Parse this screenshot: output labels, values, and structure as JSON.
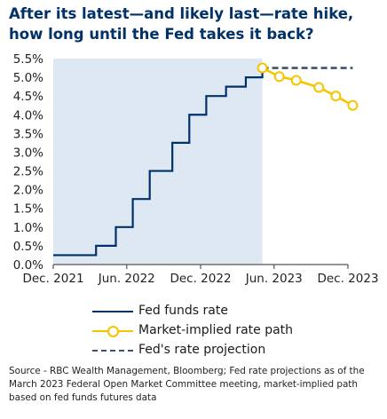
{
  "title": "After its latest—and likely last—rate hike, how long until the Fed takes it back?",
  "source": "Source - RBC Wealth Management, Bloomberg; Fed rate projections as of the March 2023 Federal Open Market Committee meeting, market-implied path based on fed funds futures data",
  "colors": {
    "fed_funds": "#003168",
    "market_path": "#f6c400",
    "projection": "#3d5270",
    "shade": "#dde8f3",
    "title": "#003168"
  },
  "chart_data": {
    "type": "line",
    "title": "After its latest—and likely last—rate hike, how long until the Fed takes it back?",
    "xlabel": "",
    "ylabel": "",
    "y_ticks": [
      "0.0%",
      "0.5%",
      "1.0%",
      "1.5%",
      "2.0%",
      "2.5%",
      "3.0%",
      "3.5%",
      "4.0%",
      "4.5%",
      "5.0%",
      "5.5%"
    ],
    "y_tick_values": [
      0,
      0.5,
      1.0,
      1.5,
      2.0,
      2.5,
      3.0,
      3.5,
      4.0,
      4.5,
      5.0,
      5.5
    ],
    "x_ticks": [
      "Dec. 2021",
      "Jun. 2022",
      "Dec. 2022",
      "Jun. 2023",
      "Dec. 2023"
    ],
    "x_tick_values": [
      "2021-12-01",
      "2022-06-01",
      "2022-12-01",
      "2023-06-01",
      "2023-12-01"
    ],
    "xlim": [
      "2021-12-01",
      "2023-12-01"
    ],
    "ylim": [
      0,
      5.5
    ],
    "grid": false,
    "legend_position": "bottom",
    "shaded_until": "2023-05-03",
    "series": [
      {
        "name": "Fed funds rate",
        "style": "step",
        "points": [
          {
            "x": "2021-12-01",
            "y": 0.25
          },
          {
            "x": "2022-03-17",
            "y": 0.5
          },
          {
            "x": "2022-05-05",
            "y": 1.0
          },
          {
            "x": "2022-06-16",
            "y": 1.75
          },
          {
            "x": "2022-07-28",
            "y": 2.5
          },
          {
            "x": "2022-09-22",
            "y": 3.25
          },
          {
            "x": "2022-11-03",
            "y": 4.0
          },
          {
            "x": "2022-12-15",
            "y": 4.5
          },
          {
            "x": "2023-02-02",
            "y": 4.75
          },
          {
            "x": "2023-03-23",
            "y": 5.0
          },
          {
            "x": "2023-05-03",
            "y": 5.25
          }
        ]
      },
      {
        "name": "Market-implied rate path",
        "style": "line-markers",
        "points": [
          {
            "x": "2023-05-03",
            "y": 5.25
          },
          {
            "x": "2023-06-14",
            "y": 5.02
          },
          {
            "x": "2023-07-26",
            "y": 4.92
          },
          {
            "x": "2023-09-20",
            "y": 4.73
          },
          {
            "x": "2023-11-01",
            "y": 4.5
          },
          {
            "x": "2023-12-13",
            "y": 4.25
          }
        ]
      },
      {
        "name": "Fed's rate projection",
        "style": "dashed",
        "points": [
          {
            "x": "2023-05-03",
            "y": 5.25
          },
          {
            "x": "2023-12-13",
            "y": 5.25
          }
        ]
      }
    ]
  }
}
